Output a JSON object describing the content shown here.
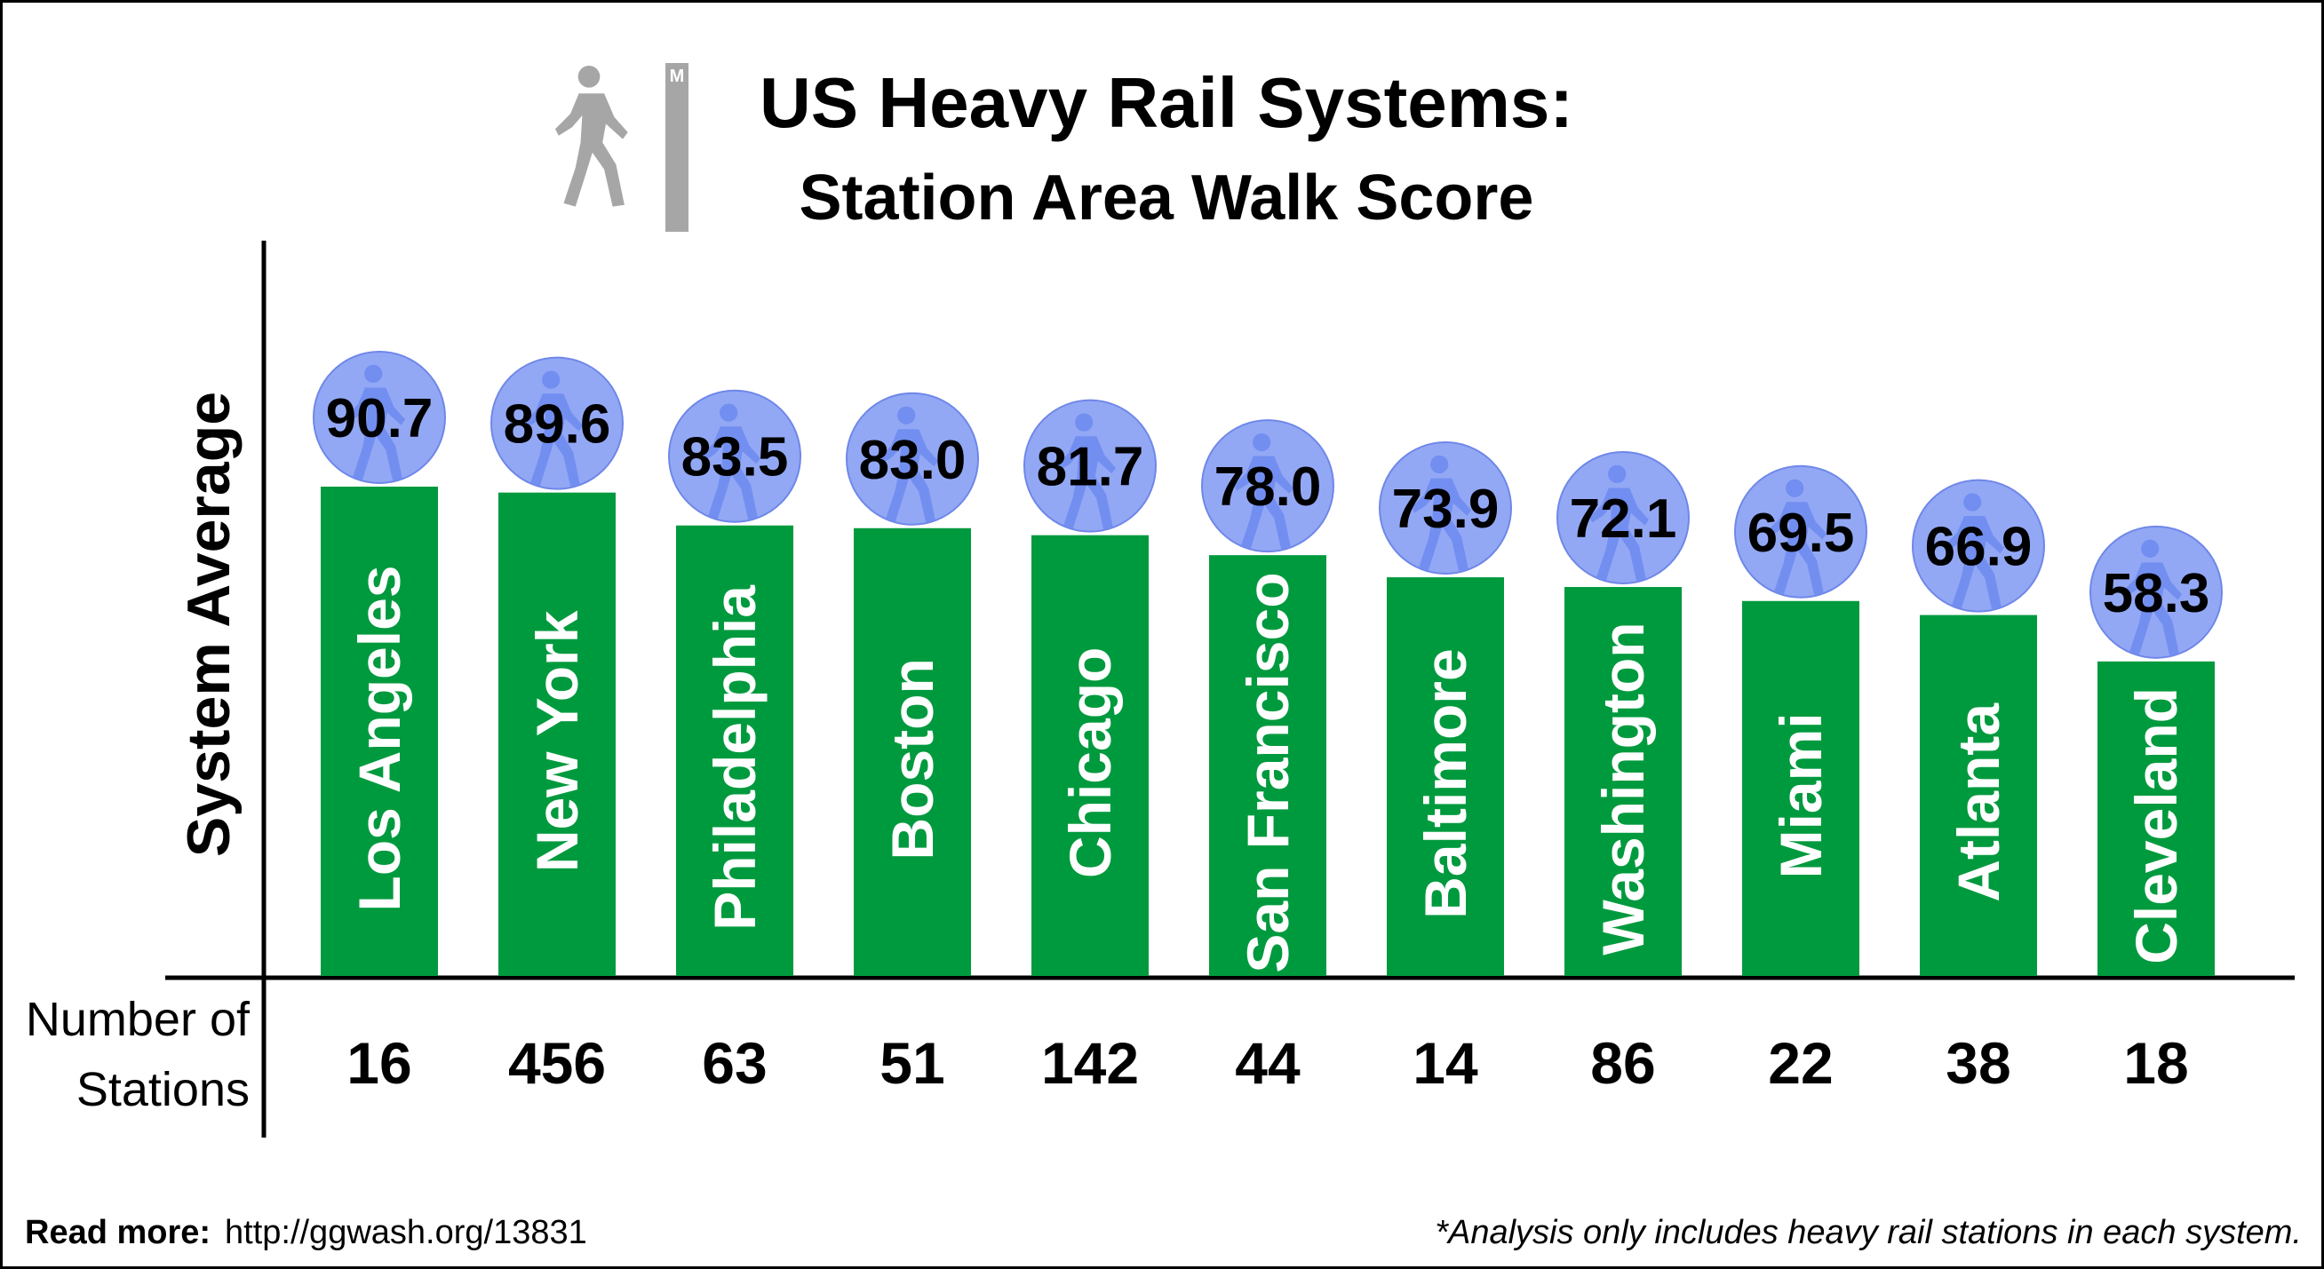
{
  "title_line1": "US Heavy Rail Systems:",
  "title_line2": "Station Area Walk Score",
  "logo_letter": "M",
  "footer": {
    "read_more_label": "Read more:",
    "url": "http://ggwash.org/13831",
    "note": "*Analysis only includes heavy rail stations in each system."
  },
  "colors": {
    "bar": "#009a3e",
    "bubble": "#93a8f5",
    "bubble_edge": "#6f87e8",
    "walker_icon": "#a6a6a6"
  },
  "icons": {
    "title": "pedestrian-icon",
    "bubble": "pedestrian-icon"
  },
  "chart_data": {
    "type": "bar",
    "title": "US Heavy Rail Systems: Station Area Walk Score",
    "ylabel": "System Average",
    "categories": [
      "Los Angeles",
      "New York",
      "Philadelphia",
      "Boston",
      "Chicago",
      "San Francisco",
      "Baltimore",
      "Washington",
      "Miami",
      "Atlanta",
      "Cleveland"
    ],
    "values": [
      90.7,
      89.6,
      83.5,
      83.0,
      81.7,
      78.0,
      73.9,
      72.1,
      69.5,
      66.9,
      58.3
    ],
    "value_labels": [
      "90.7",
      "89.6",
      "83.5",
      "83.0",
      "81.7",
      "78.0",
      "73.9",
      "72.1",
      "69.5",
      "66.9",
      "58.3"
    ],
    "table_row": {
      "label_line1": "Number of",
      "label_line2": "Stations",
      "values": [
        "16",
        "456",
        "63",
        "51",
        "142",
        "44",
        "14",
        "86",
        "22",
        "38",
        "18"
      ]
    },
    "ylim": [
      0,
      100
    ],
    "grid": false,
    "legend": "none"
  }
}
